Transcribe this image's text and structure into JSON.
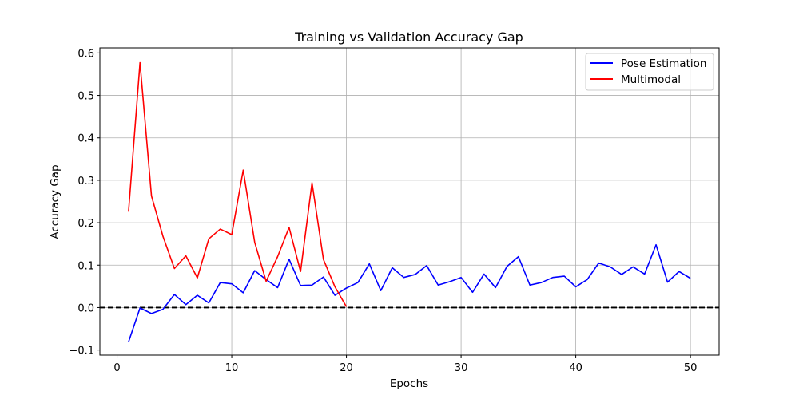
{
  "chart_data": {
    "type": "line",
    "title": "Training vs Validation Accuracy Gap",
    "xlabel": "Epochs",
    "ylabel": "Accuracy Gap",
    "xlim": [
      -1.5,
      52.5
    ],
    "ylim": [
      -0.112,
      0.612
    ],
    "xticks": [
      0,
      10,
      20,
      30,
      40,
      50
    ],
    "yticks": [
      -0.1,
      0.0,
      0.1,
      0.2,
      0.3,
      0.4,
      0.5,
      0.6
    ],
    "xtick_labels": [
      "0",
      "10",
      "20",
      "30",
      "40",
      "50"
    ],
    "ytick_labels": [
      "−0.1",
      "0.0",
      "0.1",
      "0.2",
      "0.3",
      "0.4",
      "0.5",
      "0.6"
    ],
    "grid": true,
    "legend_position": "top-right",
    "reference_line": {
      "y": 0.0,
      "style": "dashed",
      "color": "#000000"
    },
    "series": [
      {
        "name": "Pose Estimation",
        "color": "#0000ff",
        "x": [
          1,
          2,
          3,
          4,
          5,
          6,
          7,
          8,
          9,
          10,
          11,
          12,
          13,
          14,
          15,
          16,
          17,
          18,
          19,
          20,
          21,
          22,
          23,
          24,
          25,
          26,
          27,
          28,
          29,
          30,
          31,
          32,
          33,
          34,
          35,
          36,
          37,
          38,
          39,
          40,
          41,
          42,
          43,
          44,
          45,
          46,
          47,
          48,
          49,
          50
        ],
        "values": [
          -0.081,
          -0.001,
          -0.014,
          -0.004,
          0.031,
          0.007,
          0.029,
          0.011,
          0.059,
          0.056,
          0.035,
          0.087,
          0.066,
          0.047,
          0.114,
          0.052,
          0.053,
          0.072,
          0.029,
          0.046,
          0.059,
          0.103,
          0.04,
          0.094,
          0.071,
          0.078,
          0.099,
          0.053,
          0.061,
          0.071,
          0.036,
          0.079,
          0.047,
          0.097,
          0.12,
          0.053,
          0.059,
          0.071,
          0.074,
          0.049,
          0.066,
          0.105,
          0.096,
          0.078,
          0.096,
          0.079,
          0.148,
          0.06,
          0.085,
          0.069
        ]
      },
      {
        "name": "Multimodal",
        "color": "#ff0000",
        "x": [
          1,
          2,
          3,
          4,
          5,
          6,
          7,
          8,
          9,
          10,
          11,
          12,
          13,
          14,
          15,
          16,
          17,
          18,
          19,
          20
        ],
        "values": [
          0.226,
          0.577,
          0.263,
          0.168,
          0.092,
          0.122,
          0.07,
          0.162,
          0.185,
          0.172,
          0.324,
          0.154,
          0.062,
          0.12,
          0.189,
          0.085,
          0.294,
          0.113,
          0.049,
          0.002
        ]
      }
    ]
  }
}
